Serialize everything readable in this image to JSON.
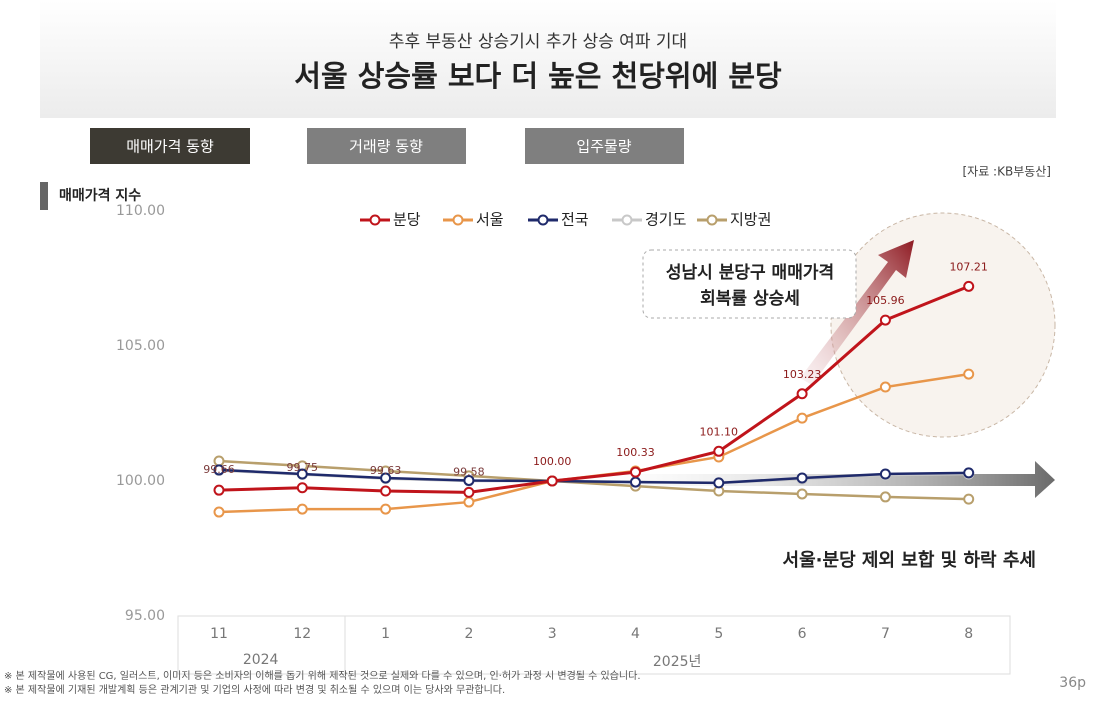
{
  "header": {
    "subtitle": "추후 부동산 상승기시 추가 상승 여파 기대",
    "title": "서울 상승률 보다 더 높은 천당위에 분당"
  },
  "tabs": [
    "매매가격 동향",
    "거래량 동향",
    "입주물량"
  ],
  "source": "[자료 :KB부동산]",
  "chart_data": {
    "type": "line",
    "y_label": "매매가격 지수",
    "categories": [
      "11",
      "12",
      "1",
      "2",
      "3",
      "4",
      "5",
      "6",
      "7",
      "8"
    ],
    "x_group_labels": [
      "2024",
      "2025년"
    ],
    "ylim": [
      95,
      110
    ],
    "yticks": [
      {
        "value": 95,
        "label": "95.00"
      },
      {
        "value": 100,
        "label": "100.00"
      },
      {
        "value": 105,
        "label": "105.00"
      },
      {
        "value": 110,
        "label": "110.00"
      }
    ],
    "series": [
      {
        "name": "분당",
        "color": "#c0141b",
        "values": [
          99.66,
          99.75,
          99.63,
          99.58,
          100.0,
          100.33,
          101.1,
          103.23,
          105.96,
          107.21
        ],
        "value_labels": [
          "99.66",
          "99.75",
          "99.63",
          "99.58",
          "100.00",
          "100.33",
          "101.10",
          "103.23",
          "105.96",
          "107.21"
        ]
      },
      {
        "name": "서울",
        "color": "#e8964a",
        "values": [
          98.85,
          98.96,
          98.96,
          99.22,
          100.0,
          100.37,
          100.89,
          102.33,
          103.48,
          103.96
        ]
      },
      {
        "name": "전국",
        "color": "#1f2a6b",
        "values": [
          100.41,
          100.26,
          100.11,
          100.02,
          100.0,
          99.96,
          99.93,
          100.11,
          100.26,
          100.3
        ]
      },
      {
        "name": "경기도",
        "color": "#c8c8c8",
        "values": [
          100.39,
          100.24,
          100.09,
          100.0,
          100.0,
          99.97,
          99.93,
          100.07,
          100.22,
          100.26
        ]
      },
      {
        "name": "지방권",
        "color": "#b89f6c",
        "values": [
          100.74,
          100.56,
          100.37,
          100.19,
          100.0,
          99.81,
          99.63,
          99.52,
          99.41,
          99.33
        ]
      }
    ],
    "annotations": [
      "성남시 분당구 매매가격",
      "회복률 상승세",
      "서울·분당 제외 보합 및 하락 추세"
    ]
  },
  "footnotes": [
    "※ 본 제작물에 사용된 CG, 일러스트, 이미지 등은 소비자의 이해를 돕기 위해 제작된 것으로 실제와 다를 수 있으며, 인·허가 과정 시 변경될 수 있습니다.",
    "※ 본 제작물에 기재된 개발계획 등은 관계기관 및 기업의 사정에 따라 변경 및 취소될 수 있으며 이는 당사와 무관합니다."
  ],
  "page_number": "36p"
}
